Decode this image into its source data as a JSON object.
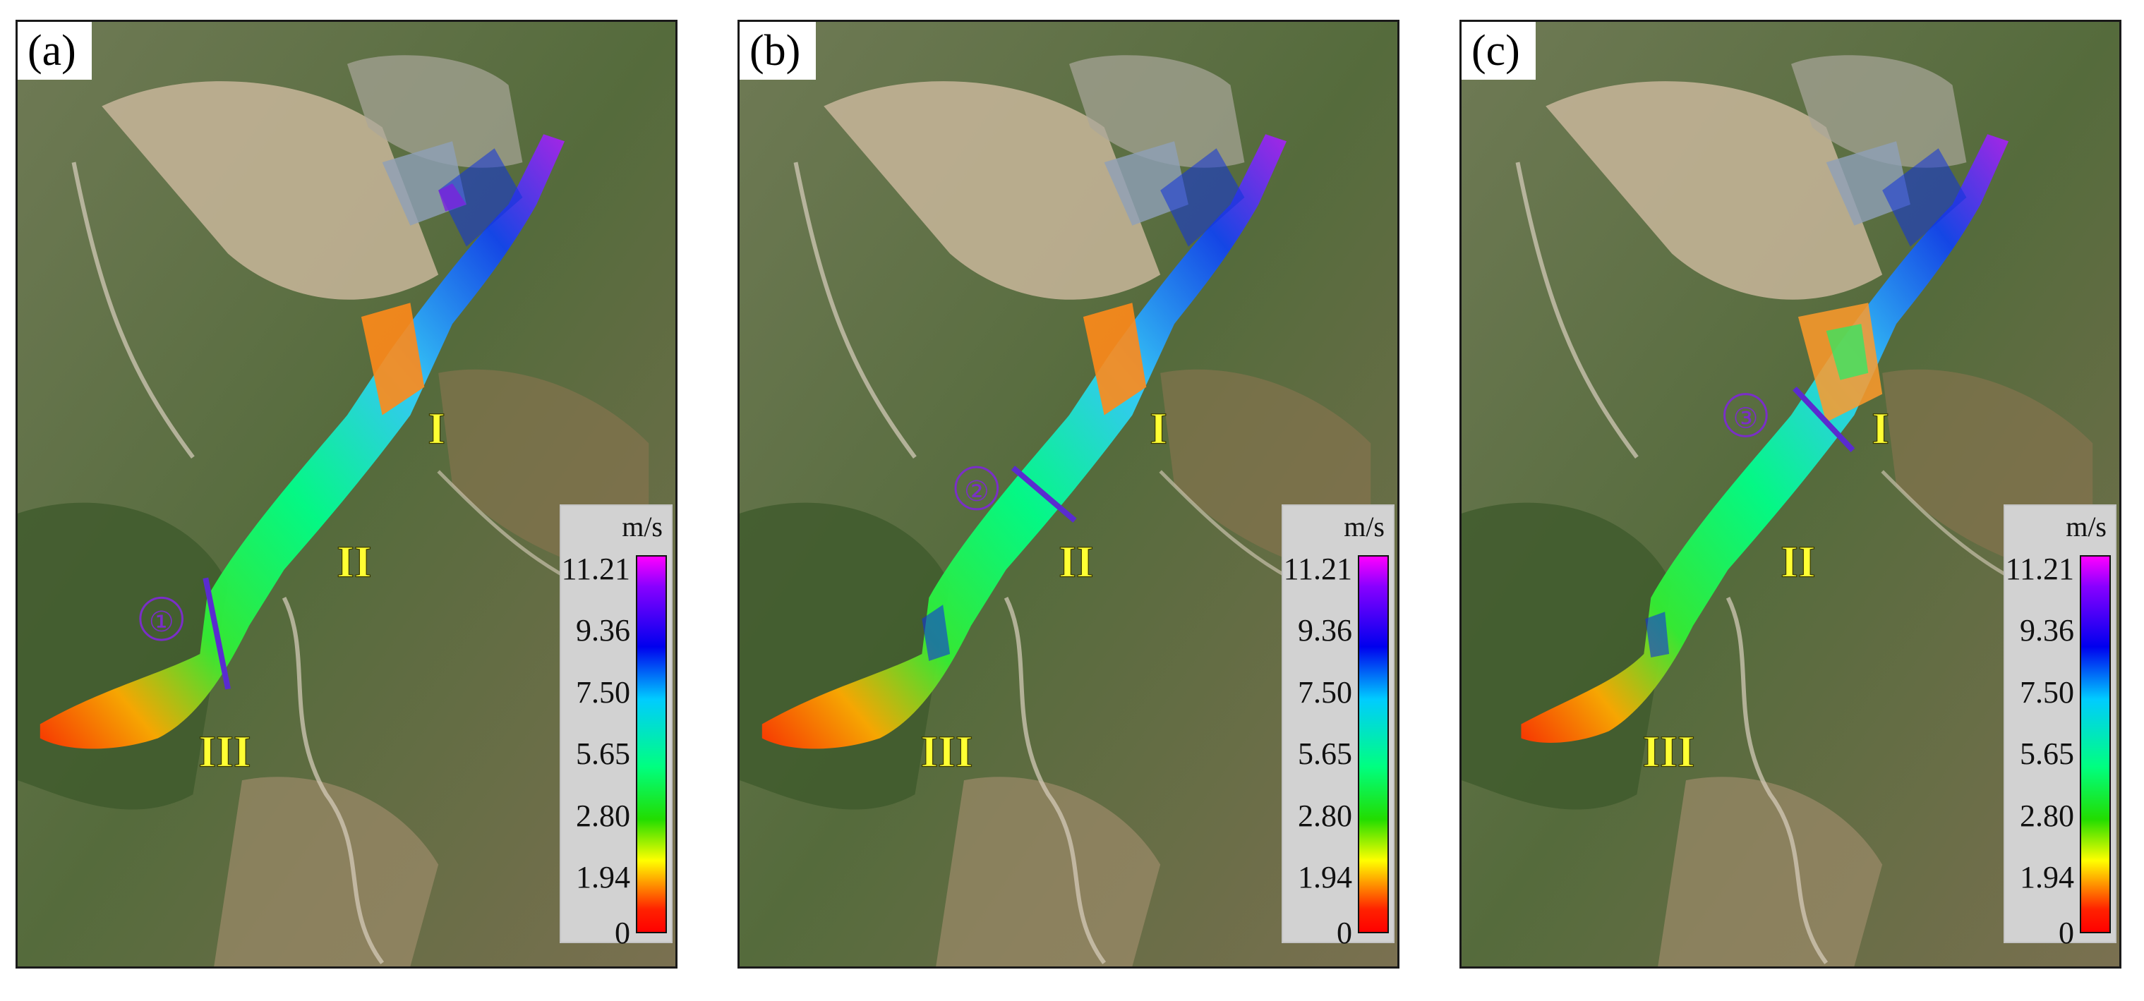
{
  "panels": [
    {
      "label": "(a)",
      "marker": "①"
    },
    {
      "label": "(b)",
      "marker": "②"
    },
    {
      "label": "(c)",
      "marker": "③"
    }
  ],
  "zones": [
    "I",
    "II",
    "III"
  ],
  "legend": {
    "unit": "m/s",
    "ticks": [
      "11.21",
      "9.36",
      "7.50",
      "5.65",
      "2.80",
      "1.94",
      "0"
    ]
  },
  "colors": {
    "zone_text": "#ffff33",
    "marker": "#7a2ec8",
    "cross_section_line": "#5a2bd0"
  }
}
